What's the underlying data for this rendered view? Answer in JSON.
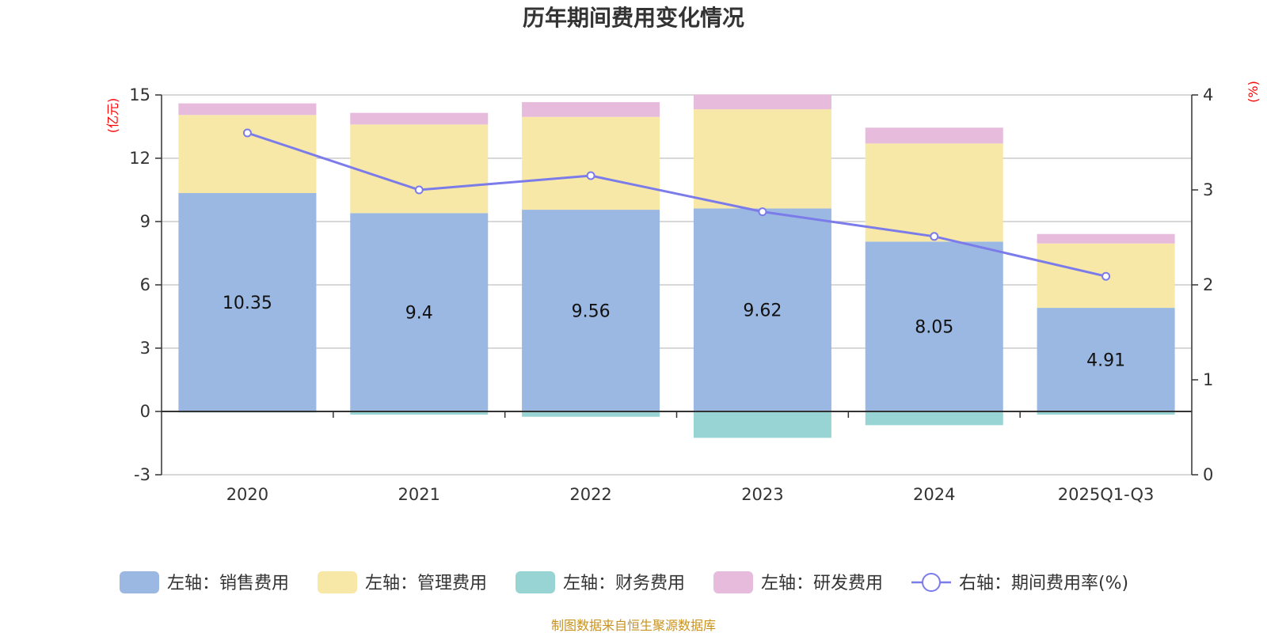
{
  "chart_data": {
    "type": "bar",
    "stacked": true,
    "title": "历年期间费用变化情况",
    "categories": [
      "2020",
      "2021",
      "2022",
      "2023",
      "2024",
      "2025Q1-Q3"
    ],
    "left_axis": {
      "unit_label": "(亿元)",
      "min": -3,
      "max": 15,
      "ticks": [
        -3,
        0,
        3,
        6,
        9,
        12,
        15
      ]
    },
    "right_axis": {
      "unit_label": "(%)",
      "min": 0,
      "max": 4,
      "ticks": [
        0,
        1,
        2,
        3,
        4
      ]
    },
    "series": [
      {
        "name": "左轴：销售费用",
        "axis": "left",
        "type": "bar",
        "color": "#9bb8e2",
        "values": [
          10.35,
          9.4,
          9.56,
          9.62,
          8.05,
          4.91
        ],
        "labels": [
          "10.35",
          "9.4",
          "9.56",
          "9.62",
          "8.05",
          "4.91"
        ]
      },
      {
        "name": "左轴：管理费用",
        "axis": "left",
        "type": "bar",
        "color": "#f7e8a8",
        "values": [
          3.7,
          4.2,
          4.4,
          4.7,
          4.65,
          3.05
        ]
      },
      {
        "name": "左轴：财务费用",
        "axis": "left",
        "type": "bar",
        "color": "#98d4d3",
        "values": [
          -0.05,
          -0.15,
          -0.25,
          -1.25,
          -0.65,
          -0.15
        ]
      },
      {
        "name": "左轴：研发费用",
        "axis": "left",
        "type": "bar",
        "color": "#e6bbdc",
        "values": [
          0.55,
          0.55,
          0.7,
          0.7,
          0.75,
          0.45
        ]
      },
      {
        "name": "右轴：期间费用率(%)",
        "axis": "right",
        "type": "line",
        "color": "#7b7bea",
        "values": [
          3.6,
          3.0,
          3.15,
          2.77,
          2.51,
          2.09
        ]
      }
    ],
    "legend_position": "bottom",
    "grid": true
  },
  "source_note": "制图数据来自恒生聚源数据库"
}
